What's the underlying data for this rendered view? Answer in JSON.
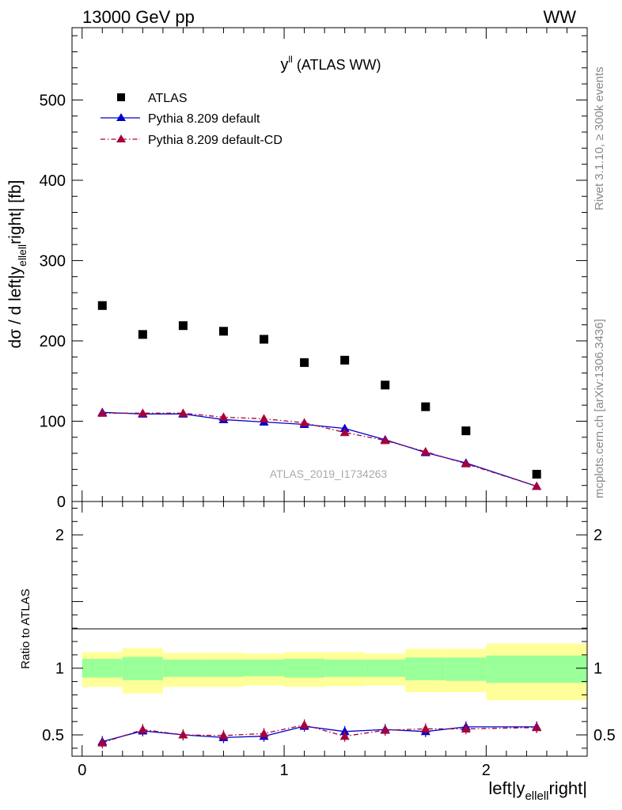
{
  "header": {
    "left": "13000 GeV pp",
    "right": "WW"
  },
  "side": {
    "rivet": "Rivet 3.1.10, ≥ 300k events",
    "mcplots": "mcplots.cern.ch [arXiv:1306.3436]"
  },
  "chart_data": [
    {
      "type": "scatter",
      "title": "y^{ll} (ATLAS WW)",
      "title_main": "y",
      "title_sup": "ll",
      "title_rest": "(ATLAS WW)",
      "watermark": "ATLAS_2019_I1734263",
      "ylabel": "dσ / d left|y_{ellell} right| [fb]",
      "ylabel_parts": [
        "dσ / d left|y",
        "ellell",
        "right| [fb]"
      ],
      "ylim": [
        0,
        590
      ],
      "yticks": [
        0,
        100,
        200,
        300,
        400,
        500
      ],
      "xlim": [
        -0.05,
        2.5
      ],
      "legend_position": "top-left",
      "legend": [
        "ATLAS",
        "Pythia 8.209 default",
        "Pythia 8.209 default-CD"
      ],
      "x": [
        0.1,
        0.3,
        0.5,
        0.7,
        0.9,
        1.1,
        1.3,
        1.5,
        1.7,
        1.9,
        2.25
      ],
      "series": [
        {
          "name": "ATLAS",
          "color": "#000000",
          "marker": "square",
          "values": [
            244,
            208,
            219,
            212,
            202,
            173,
            176,
            145,
            118,
            88,
            34
          ]
        },
        {
          "name": "Pythia 8.209 default",
          "color": "#0000cc",
          "marker": "triangle",
          "line": "solid",
          "values": [
            111,
            109,
            109,
            102,
            99,
            96,
            91,
            77,
            61,
            48,
            19
          ]
        },
        {
          "name": "Pythia 8.209 default-CD",
          "color": "#a8003b",
          "marker": "triangle",
          "line": "dashdot",
          "values": [
            110,
            110,
            110,
            105,
            103,
            98,
            86,
            76,
            62,
            47,
            19
          ]
        }
      ]
    },
    {
      "type": "line",
      "ylabel": "Ratio to ATLAS",
      "xlabel": "left|y_{ellell}right|",
      "xlabel_parts": [
        "left|y",
        "ellell",
        "right|"
      ],
      "ylim": [
        0.34,
        2.25
      ],
      "yticks": [
        0.5,
        1,
        2
      ],
      "ytick_labels": [
        "0.5",
        "1",
        "2"
      ],
      "xlim": [
        -0.05,
        2.5
      ],
      "xticks": [
        0,
        1,
        2
      ],
      "xtick_labels": [
        "0",
        "1",
        "2"
      ],
      "bands": {
        "edges": [
          0,
          0.2,
          0.4,
          0.6,
          0.8,
          1.0,
          1.2,
          1.4,
          1.6,
          1.8,
          2.0,
          2.5
        ],
        "outer_low": [
          0.86,
          0.81,
          0.86,
          0.86,
          0.87,
          0.86,
          0.865,
          0.87,
          0.82,
          0.82,
          0.76
        ],
        "outer_high": [
          1.12,
          1.15,
          1.115,
          1.115,
          1.11,
          1.12,
          1.12,
          1.11,
          1.145,
          1.145,
          1.185
        ],
        "inner_low": [
          0.93,
          0.91,
          0.935,
          0.935,
          0.94,
          0.93,
          0.935,
          0.935,
          0.91,
          0.905,
          0.89
        ],
        "inner_high": [
          1.07,
          1.085,
          1.065,
          1.065,
          1.065,
          1.07,
          1.065,
          1.065,
          1.08,
          1.08,
          1.095
        ],
        "outer_color": "#ffff99",
        "inner_color": "#99ff99"
      },
      "x": [
        0.1,
        0.3,
        0.5,
        0.7,
        0.9,
        1.1,
        1.3,
        1.5,
        1.7,
        1.9,
        2.25
      ],
      "series": [
        {
          "name": "Pythia 8.209 default",
          "color": "#0000cc",
          "line": "solid",
          "values": [
            0.45,
            0.53,
            0.5,
            0.48,
            0.49,
            0.565,
            0.525,
            0.54,
            0.525,
            0.56,
            0.56
          ]
        },
        {
          "name": "Pythia 8.209 default-CD",
          "color": "#a8003b",
          "line": "dashdot",
          "values": [
            0.44,
            0.54,
            0.5,
            0.495,
            0.51,
            0.575,
            0.49,
            0.535,
            0.545,
            0.545,
            0.555
          ]
        }
      ]
    }
  ]
}
